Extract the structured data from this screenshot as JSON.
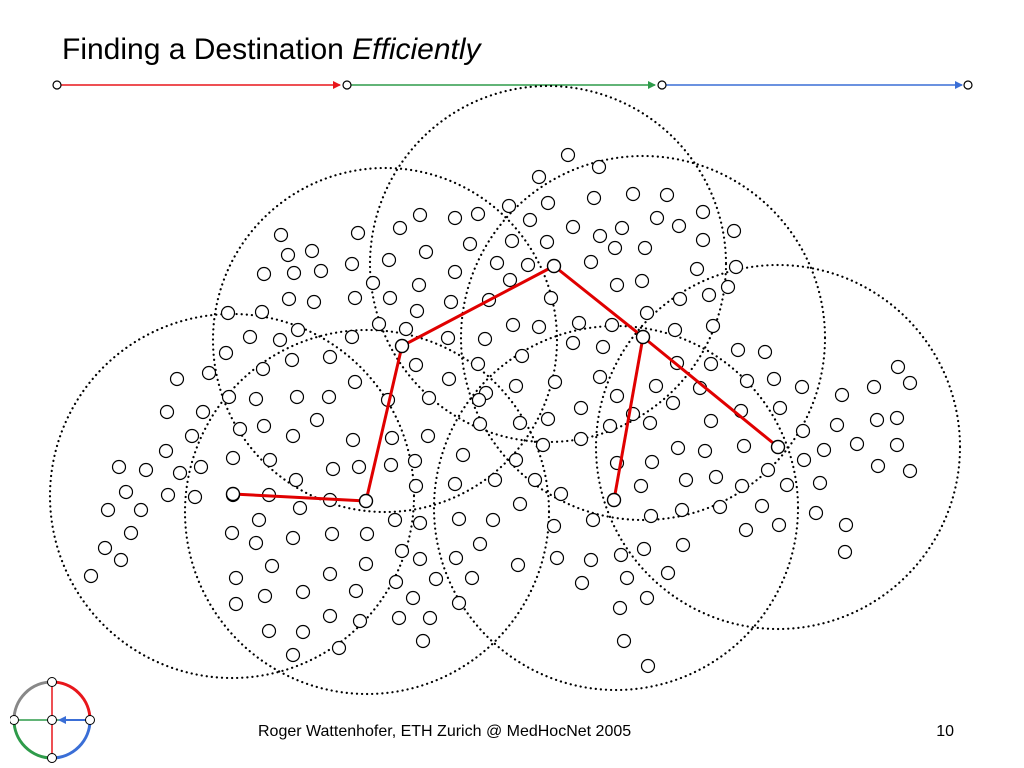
{
  "title": {
    "main": "Finding a Destination ",
    "emphasis": "Efficiently"
  },
  "footer": {
    "text": "Roger Wattenhofer, ETH Zurich @ MedHocNet 2005",
    "page": "10"
  },
  "colors": {
    "red": "#e8161b",
    "green": "#2e9b4a",
    "blue": "#3a6ed6",
    "route": "#e00000",
    "ink": "#000000"
  },
  "progress_bar": {
    "segments": [
      "red",
      "green",
      "blue"
    ],
    "current_stage": 3,
    "total_stages": 3
  },
  "logo": {
    "icon": "eth-dcg-compass-icon"
  },
  "diagram": {
    "description_type": "network-graph",
    "node_count": 230,
    "radio_range_circles": 7,
    "route_hops": 6
  }
}
